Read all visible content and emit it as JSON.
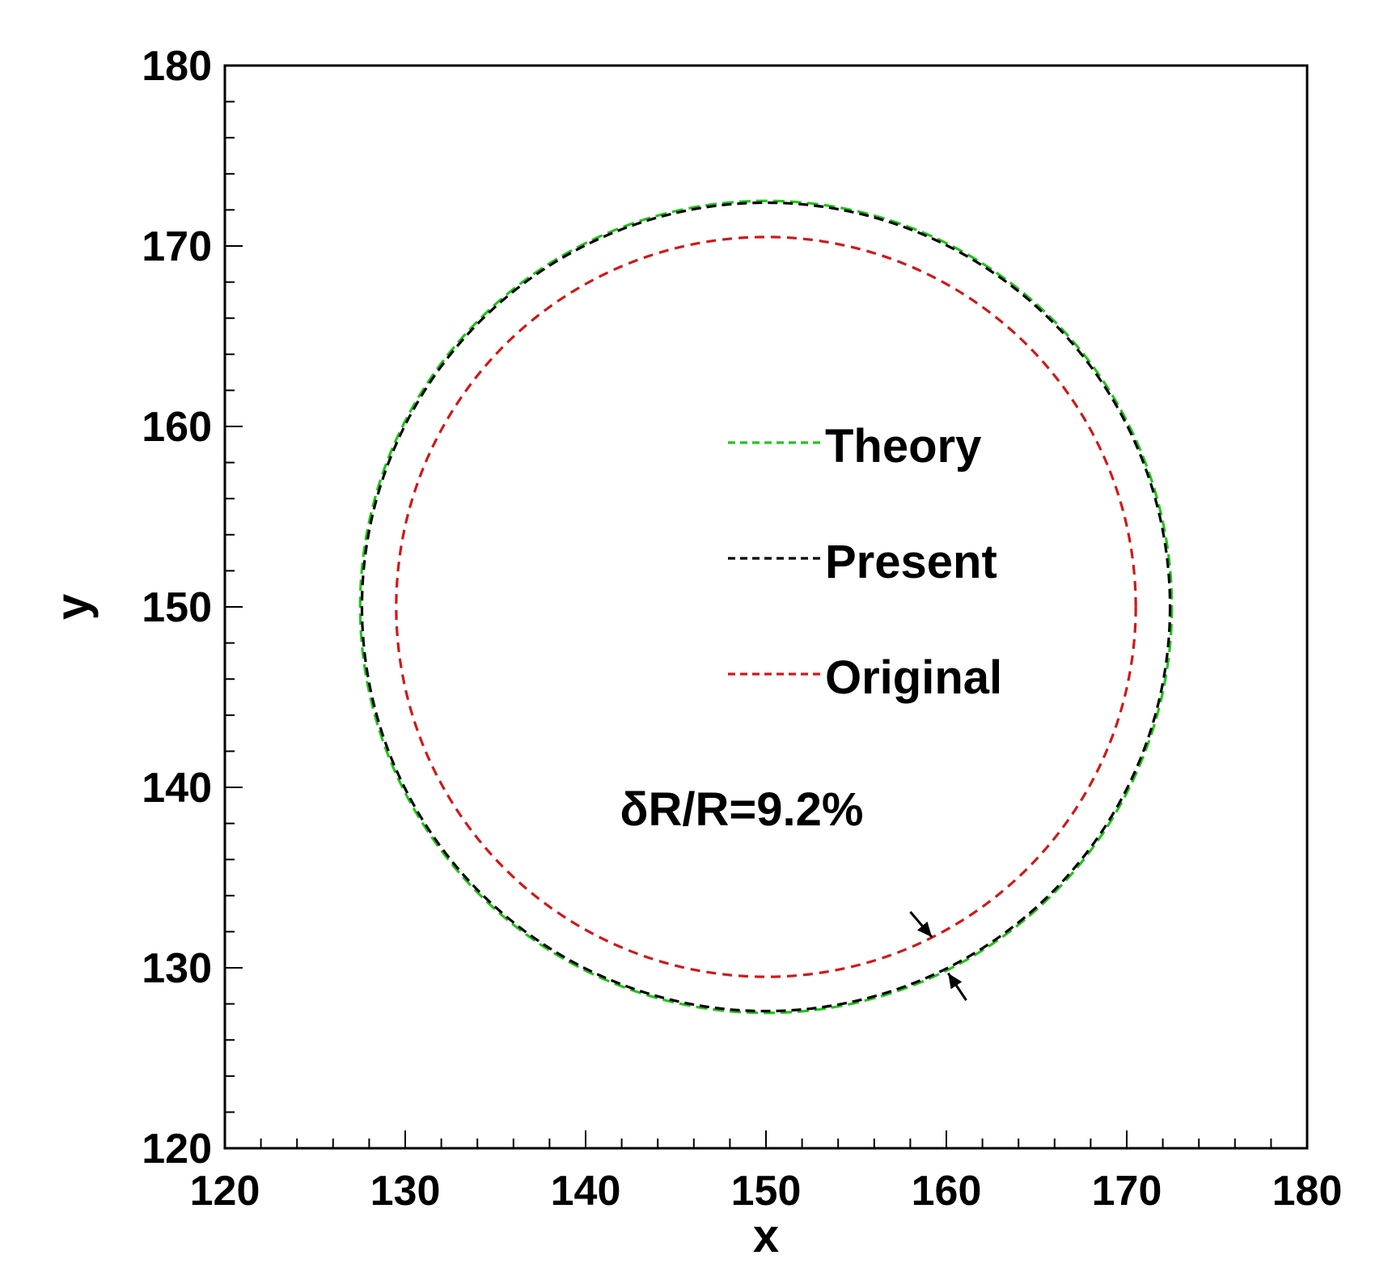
{
  "chart_data": {
    "type": "line",
    "title": "",
    "xlabel": "x",
    "ylabel": "y",
    "xlim": [
      120,
      180
    ],
    "ylim": [
      120,
      180
    ],
    "x_ticks": [
      120,
      130,
      140,
      150,
      160,
      170,
      180
    ],
    "y_ticks": [
      120,
      130,
      140,
      150,
      160,
      170,
      180
    ],
    "x_tick_labels": [
      "120",
      "130",
      "140",
      "150",
      "160",
      "170",
      "180"
    ],
    "y_tick_labels": [
      "120",
      "130",
      "140",
      "150",
      "160",
      "170",
      "180"
    ],
    "minor_tick_step": 2,
    "grid": false,
    "legend_position": "upper-right",
    "series": [
      {
        "name": "Theory",
        "shape": "circle",
        "center": [
          150,
          150
        ],
        "radius": 22.5,
        "color": "#22c41a",
        "linestyle": "dashed"
      },
      {
        "name": "Present",
        "shape": "circle",
        "center": [
          150,
          150
        ],
        "radius": 22.4,
        "color": "#000000",
        "linestyle": "dashed"
      },
      {
        "name": "Original",
        "shape": "circle",
        "center": [
          150,
          150
        ],
        "radius": 20.5,
        "color": "#d01818",
        "linestyle": "dashed"
      }
    ],
    "annotations": [
      {
        "text": "δR/R=9.2%",
        "x": 141.9,
        "y": 137.9
      }
    ],
    "arrows": [
      {
        "tip": [
          159.2,
          131.7
        ],
        "tail": [
          158.0,
          133.1
        ]
      },
      {
        "tip": [
          160.1,
          129.7
        ],
        "tail": [
          161.1,
          128.2
        ]
      }
    ]
  }
}
